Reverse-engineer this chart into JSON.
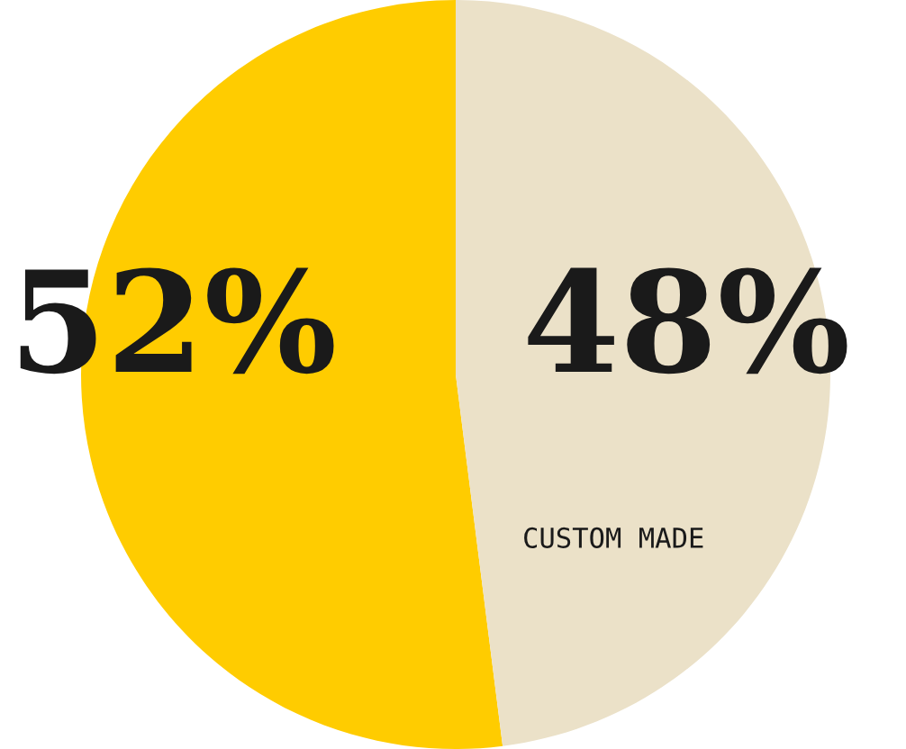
{
  "chart_data": {
    "type": "pie",
    "categories": [
      null,
      "CUSTOM MADE"
    ],
    "values": [
      52,
      48
    ],
    "value_labels": [
      "52%",
      "48%"
    ],
    "colors": [
      "#ffcc00",
      "#ebe1c8"
    ]
  }
}
